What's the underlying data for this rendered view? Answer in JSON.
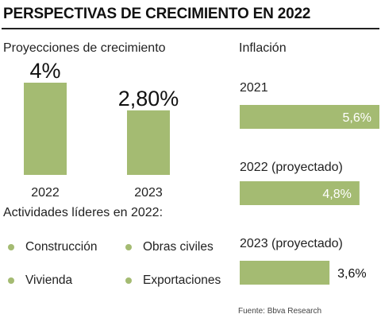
{
  "title": "PERSPECTIVAS DE CRECIMIENTO EN 2022",
  "colors": {
    "bar": "#a4bb72",
    "text": "#222222",
    "dot": "#a4bb72"
  },
  "chart_data": [
    {
      "type": "bar",
      "title": "Proyecciones de crecimiento",
      "categories": [
        "2022",
        "2023"
      ],
      "values": [
        4.0,
        2.8
      ],
      "data_labels": [
        "4%",
        "2,80%"
      ],
      "ylim": [
        0,
        4.0
      ],
      "grid": false
    },
    {
      "type": "bar",
      "orientation": "horizontal",
      "title": "Inflación",
      "categories": [
        "2021",
        "2022 (proyectado)",
        "2023 (proyectado)"
      ],
      "values": [
        5.6,
        4.8,
        3.6
      ],
      "data_labels": [
        "5,6%",
        "4,8%",
        "3,6%"
      ],
      "xlim": [
        0,
        5.6
      ],
      "grid": false
    }
  ],
  "activities": {
    "title": "Actividades líderes en 2022:",
    "items": [
      "Construcción",
      "Obras civiles",
      "Vivienda",
      "Exportaciones"
    ]
  },
  "source": "Fuente: Bbva Research"
}
